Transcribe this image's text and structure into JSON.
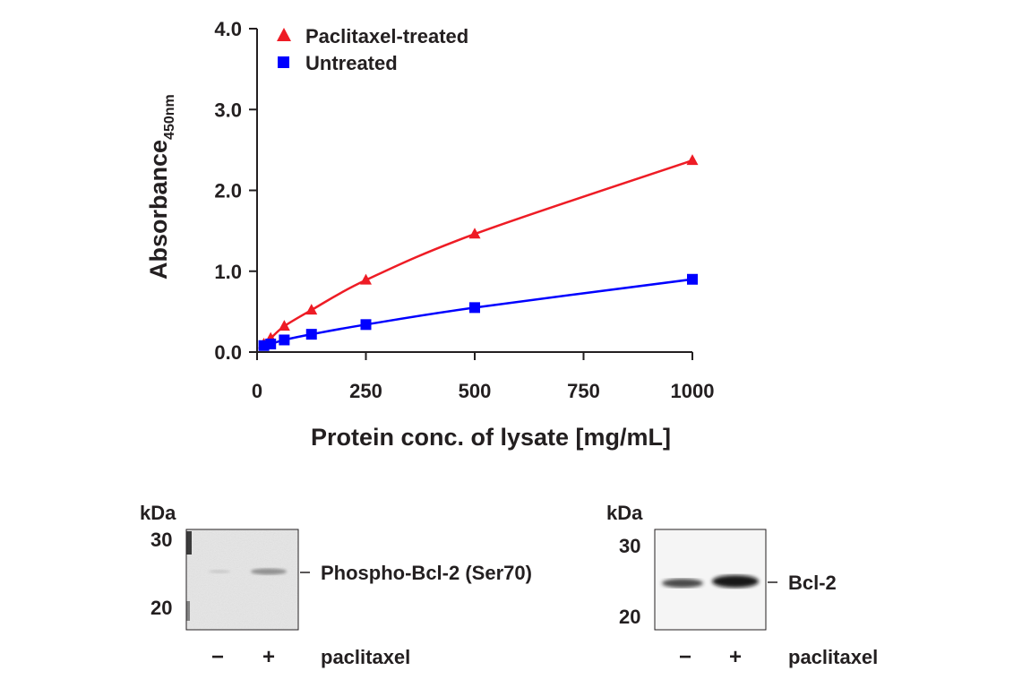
{
  "chart_data": {
    "type": "line",
    "title": "",
    "xlabel": "Protein conc. of lysate [mg/mL]",
    "ylabel": "Absorbance",
    "ylabel_subscript": "450nm",
    "xlim": [
      0,
      1000
    ],
    "ylim": [
      0,
      4
    ],
    "xticks": [
      0,
      250,
      500,
      750,
      1000
    ],
    "xtick_labels": [
      "0",
      "250",
      "500",
      "750",
      "1000"
    ],
    "yticks": [
      0,
      1,
      2,
      3,
      4
    ],
    "ytick_labels": [
      "0.0",
      "1.0",
      "2.0",
      "3.0",
      "4.0"
    ],
    "grid": false,
    "legend_position": "top-left",
    "series": [
      {
        "name": "Paclitaxel-treated",
        "marker": "triangle",
        "color": "#ee1c25",
        "x": [
          15.6,
          31.25,
          62.5,
          125,
          250,
          500,
          1000
        ],
        "y": [
          0.1,
          0.17,
          0.32,
          0.52,
          0.89,
          1.46,
          2.37
        ]
      },
      {
        "name": "Untreated",
        "marker": "square",
        "color": "#0000ff",
        "x": [
          15.6,
          31.25,
          62.5,
          125,
          250,
          500,
          1000
        ],
        "y": [
          0.08,
          0.1,
          0.15,
          0.22,
          0.34,
          0.55,
          0.9
        ]
      }
    ]
  },
  "blots": [
    {
      "kda_label": "kDa",
      "markers": [
        "30",
        "20"
      ],
      "band_label": "Phospho-Bcl-2 (Ser70)",
      "lanes": [
        "−",
        "+"
      ],
      "treatment": "paclitaxel"
    },
    {
      "kda_label": "kDa",
      "markers": [
        "30",
        "20"
      ],
      "band_label": "Bcl-2",
      "lanes": [
        "−",
        "+"
      ],
      "treatment": "paclitaxel"
    }
  ]
}
